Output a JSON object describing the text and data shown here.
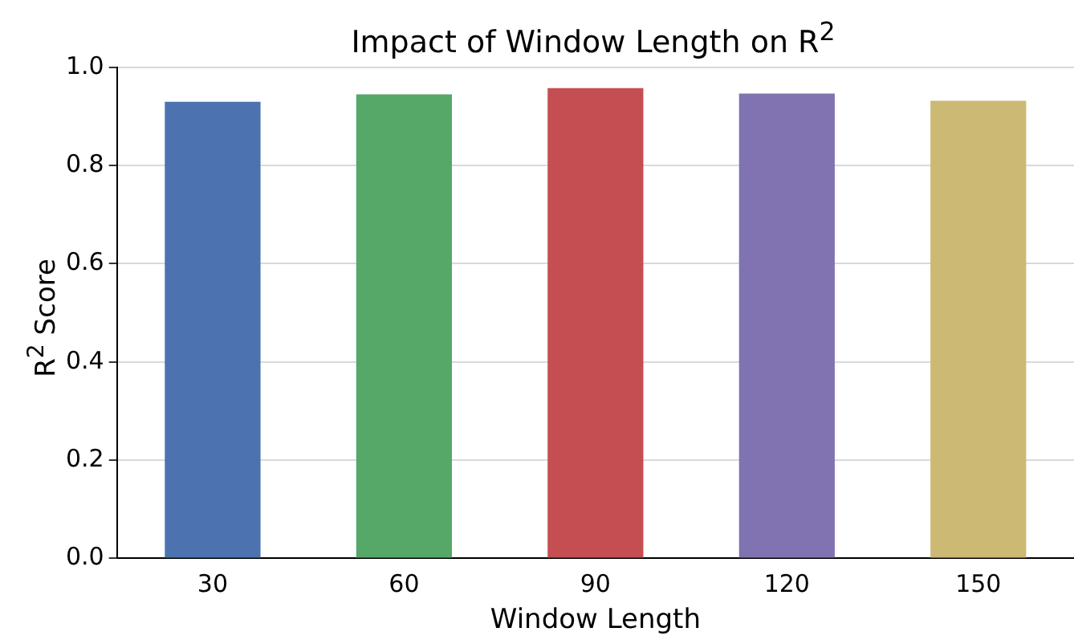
{
  "chart_data": {
    "type": "bar",
    "title": "Impact of Window Length on R$^{2}$",
    "xlabel": "Window Length",
    "ylabel": "R$^{2}$ Score",
    "categories": [
      "30",
      "60",
      "90",
      "120",
      "150"
    ],
    "values": [
      0.93,
      0.945,
      0.958,
      0.947,
      0.932
    ],
    "colors": [
      "#4c72b0",
      "#55a868",
      "#c44e52",
      "#8172b2",
      "#ccb974"
    ],
    "ylim": [
      0,
      1
    ],
    "yticks": [
      {
        "value": 0,
        "label": "0.0"
      },
      {
        "value": 0.2,
        "label": "0.2"
      },
      {
        "value": 0.4,
        "label": "0.4"
      },
      {
        "value": 0.6,
        "label": "0.6"
      },
      {
        "value": 0.8,
        "label": "0.8"
      },
      {
        "value": 1,
        "label": "1.0"
      }
    ],
    "grid": "y",
    "legend": false
  }
}
